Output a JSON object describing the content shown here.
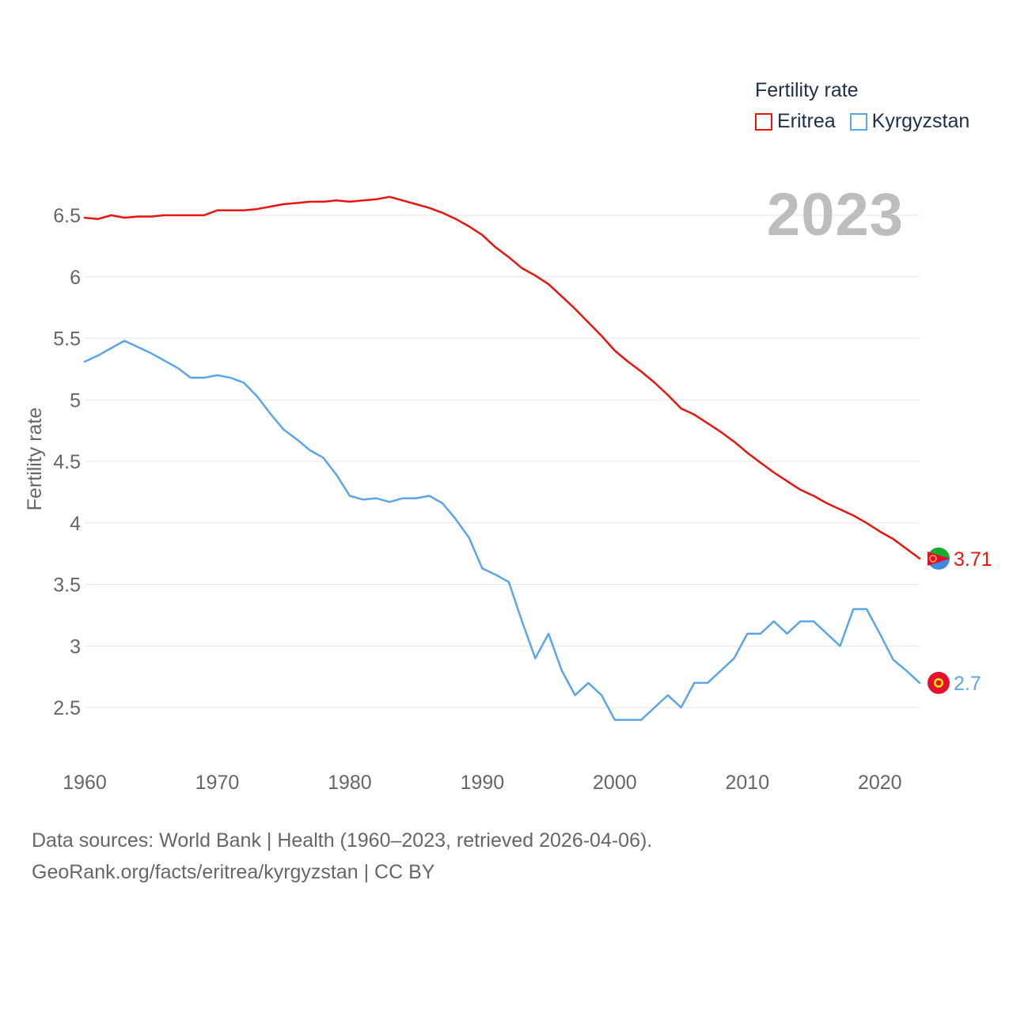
{
  "legend": {
    "title": "Fertility rate",
    "items": [
      {
        "label": "Eritrea",
        "color": "#e8150f"
      },
      {
        "label": "Kyrgyzstan",
        "color": "#5aa6e6"
      }
    ]
  },
  "current_year": "2023",
  "footer": {
    "sources": "Data sources: World Bank | Health (1960–2023, retrieved 2026-04-06).",
    "credit": "GeoRank.org/facts/eritrea/kyrgyzstan | CC BY"
  },
  "chart_data": {
    "type": "line",
    "title": "Fertility rate",
    "xlabel": "",
    "ylabel": "Fertility rate",
    "xlim": [
      1960,
      2023
    ],
    "ylim": [
      2.0,
      6.75
    ],
    "yticks": [
      2.5,
      3,
      3.5,
      4,
      4.5,
      5,
      5.5,
      6,
      6.5
    ],
    "ytick_labels": [
      "2.5",
      "3",
      "3.5",
      "4",
      "4.5",
      "5",
      "5.5",
      "6",
      "6.5"
    ],
    "xticks": [
      1960,
      1970,
      1980,
      1990,
      2000,
      2010,
      2020
    ],
    "xtick_labels": [
      "1960",
      "1970",
      "1980",
      "1990",
      "2000",
      "2010",
      "2020"
    ],
    "grid": true,
    "x": [
      1960,
      1961,
      1962,
      1963,
      1964,
      1965,
      1966,
      1967,
      1968,
      1969,
      1970,
      1971,
      1972,
      1973,
      1974,
      1975,
      1976,
      1977,
      1978,
      1979,
      1980,
      1981,
      1982,
      1983,
      1984,
      1985,
      1986,
      1987,
      1988,
      1989,
      1990,
      1991,
      1992,
      1993,
      1994,
      1995,
      1996,
      1997,
      1998,
      1999,
      2000,
      2001,
      2002,
      2003,
      2004,
      2005,
      2006,
      2007,
      2008,
      2009,
      2010,
      2011,
      2012,
      2013,
      2014,
      2015,
      2016,
      2017,
      2018,
      2019,
      2020,
      2021,
      2022,
      2023
    ],
    "series": [
      {
        "name": "Eritrea",
        "color": "#e8150f",
        "end_label": "3.71",
        "values": [
          6.48,
          6.47,
          6.5,
          6.48,
          6.49,
          6.49,
          6.5,
          6.5,
          6.5,
          6.5,
          6.54,
          6.54,
          6.54,
          6.55,
          6.57,
          6.59,
          6.6,
          6.61,
          6.61,
          6.62,
          6.61,
          6.62,
          6.63,
          6.65,
          6.62,
          6.59,
          6.56,
          6.52,
          6.47,
          6.41,
          6.34,
          6.24,
          6.16,
          6.07,
          6.01,
          5.94,
          5.84,
          5.74,
          5.63,
          5.52,
          5.4,
          5.31,
          5.23,
          5.14,
          5.04,
          4.93,
          4.88,
          4.81,
          4.74,
          4.66,
          4.57,
          4.49,
          4.41,
          4.34,
          4.27,
          4.22,
          4.16,
          4.11,
          4.06,
          4.0,
          3.93,
          3.87,
          3.79,
          3.71
        ]
      },
      {
        "name": "Kyrgyzstan",
        "color": "#5aa6e6",
        "end_label": "2.7",
        "values": [
          5.31,
          5.36,
          5.42,
          5.48,
          5.43,
          5.38,
          5.32,
          5.26,
          5.18,
          5.18,
          5.2,
          5.18,
          5.14,
          5.03,
          4.89,
          4.76,
          4.68,
          4.59,
          4.53,
          4.39,
          4.22,
          4.19,
          4.2,
          4.17,
          4.2,
          4.2,
          4.22,
          4.16,
          4.03,
          3.88,
          3.63,
          3.58,
          3.52,
          3.2,
          2.9,
          3.1,
          2.8,
          2.6,
          2.7,
          2.6,
          2.4,
          2.4,
          2.4,
          2.5,
          2.6,
          2.5,
          2.7,
          2.7,
          2.8,
          2.9,
          3.1,
          3.1,
          3.2,
          3.1,
          3.2,
          3.2,
          3.1,
          3.0,
          3.3,
          3.3,
          3.1,
          2.89,
          2.8,
          2.7
        ]
      }
    ]
  }
}
